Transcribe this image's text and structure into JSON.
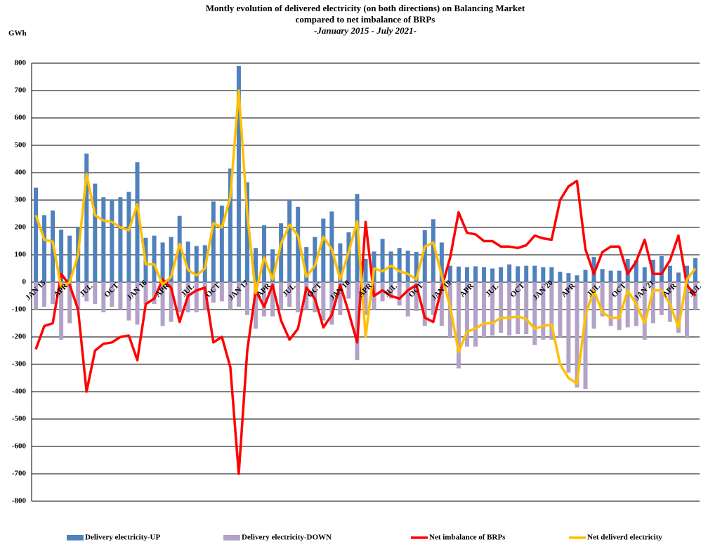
{
  "chart_data": {
    "type": "combo",
    "title": "Montly evolution of delivered electricity (on both directions) on Balancing Market",
    "subtitle": "compared  to net imbalance  of BRPs",
    "period": "-January 2015 - July 2021-",
    "y_axis_label": "GWh",
    "categories": [
      "JAN 15",
      null,
      null,
      "APR",
      null,
      null,
      "JUL",
      null,
      null,
      "OCT",
      null,
      null,
      "JAN 16",
      null,
      null,
      "APR",
      null,
      null,
      "JUL",
      null,
      null,
      "OCT",
      null,
      null,
      "JAN 17",
      null,
      null,
      "APR",
      null,
      null,
      "JUL",
      null,
      null,
      "OCT",
      null,
      null,
      "JAN 18",
      null,
      null,
      "APR",
      null,
      null,
      "JUL",
      null,
      null,
      "OCT",
      null,
      null,
      "JAN 19",
      null,
      null,
      "APR",
      null,
      null,
      "JUL",
      null,
      null,
      "OCT",
      null,
      null,
      "JAN 20",
      null,
      null,
      "APR",
      null,
      null,
      "JUL",
      null,
      null,
      "OCT",
      null,
      null,
      "JAN 21",
      null,
      null,
      "APR",
      null,
      null,
      "JUL"
    ],
    "ylim": [
      -800,
      800
    ],
    "yticks": [
      -800,
      -700,
      -600,
      -500,
      -400,
      -300,
      -200,
      -100,
      0,
      100,
      200,
      300,
      400,
      500,
      600,
      700,
      800
    ],
    "grid": true,
    "legend": "bottom",
    "series": [
      {
        "name": "Delivery electricity-UP",
        "type": "bar",
        "color": "#4f81bd",
        "values": [
          345,
          245,
          262,
          192,
          170,
          200,
          470,
          360,
          310,
          300,
          310,
          330,
          438,
          162,
          170,
          145,
          165,
          242,
          148,
          132,
          135,
          295,
          280,
          415,
          790,
          365,
          125,
          208,
          120,
          215,
          300,
          275,
          128,
          165,
          232,
          258,
          142,
          182,
          322,
          85,
          112,
          158,
          112,
          125,
          115,
          110,
          190,
          230,
          145,
          60,
          57,
          55,
          58,
          55,
          50,
          55,
          65,
          58,
          60,
          60,
          55,
          55,
          38,
          33,
          25,
          45,
          92,
          48,
          42,
          42,
          85,
          80,
          55,
          82,
          95,
          60,
          35,
          60,
          88
        ]
      },
      {
        "name": "Delivery electricity-DOWN",
        "type": "bar",
        "color": "#b3a2c7",
        "values": [
          -100,
          -90,
          -80,
          -210,
          -150,
          -100,
          -70,
          -80,
          -110,
          -90,
          -100,
          -140,
          -155,
          -80,
          -80,
          -160,
          -145,
          -110,
          -110,
          -110,
          -100,
          -75,
          -70,
          -100,
          -90,
          -120,
          -170,
          -125,
          -125,
          -100,
          -90,
          -110,
          -100,
          -110,
          -140,
          -155,
          -120,
          -60,
          -285,
          -120,
          -100,
          -70,
          -60,
          -85,
          -125,
          -105,
          -160,
          -120,
          -160,
          -200,
          -315,
          -235,
          -235,
          -200,
          -195,
          -185,
          -195,
          -190,
          -190,
          -230,
          -210,
          -210,
          -200,
          -330,
          -385,
          -390,
          -170,
          -125,
          -160,
          -175,
          -165,
          -160,
          -210,
          -150,
          -120,
          -145,
          -185,
          -205,
          -100
        ]
      },
      {
        "name": "Net imbalance of BRPs",
        "type": "line",
        "color": "#ff0000",
        "values": [
          -245,
          -160,
          -150,
          30,
          -10,
          -100,
          -400,
          -250,
          -225,
          -220,
          -200,
          -195,
          -285,
          -80,
          -60,
          10,
          -20,
          -145,
          -50,
          -30,
          -20,
          -220,
          -200,
          -310,
          -700,
          -250,
          -30,
          -90,
          -10,
          -140,
          -210,
          -170,
          -20,
          -60,
          -165,
          -120,
          -10,
          -110,
          -220,
          220,
          -50,
          -30,
          -50,
          -60,
          -30,
          -10,
          -130,
          -145,
          -20,
          90,
          255,
          180,
          175,
          150,
          150,
          130,
          130,
          125,
          135,
          170,
          160,
          155,
          300,
          350,
          370,
          120,
          30,
          110,
          130,
          130,
          30,
          75,
          155,
          30,
          30,
          80,
          170,
          -10,
          -50
        ]
      },
      {
        "name": "Net deliverd electricity",
        "type": "line",
        "color": "#ffc000",
        "values": [
          245,
          155,
          148,
          -20,
          0,
          100,
          395,
          245,
          225,
          220,
          200,
          190,
          285,
          65,
          65,
          -10,
          20,
          140,
          45,
          25,
          50,
          215,
          200,
          310,
          700,
          250,
          -40,
          90,
          10,
          140,
          210,
          170,
          20,
          60,
          165,
          120,
          10,
          110,
          222,
          -200,
          50,
          40,
          60,
          40,
          30,
          10,
          130,
          145,
          25,
          -90,
          -255,
          -180,
          -170,
          -150,
          -150,
          -130,
          -130,
          -125,
          -135,
          -170,
          -160,
          -155,
          -300,
          -350,
          -370,
          -120,
          -30,
          -110,
          -130,
          -130,
          -30,
          -80,
          -150,
          -30,
          -30,
          -80,
          -165,
          10,
          50
        ]
      }
    ]
  }
}
